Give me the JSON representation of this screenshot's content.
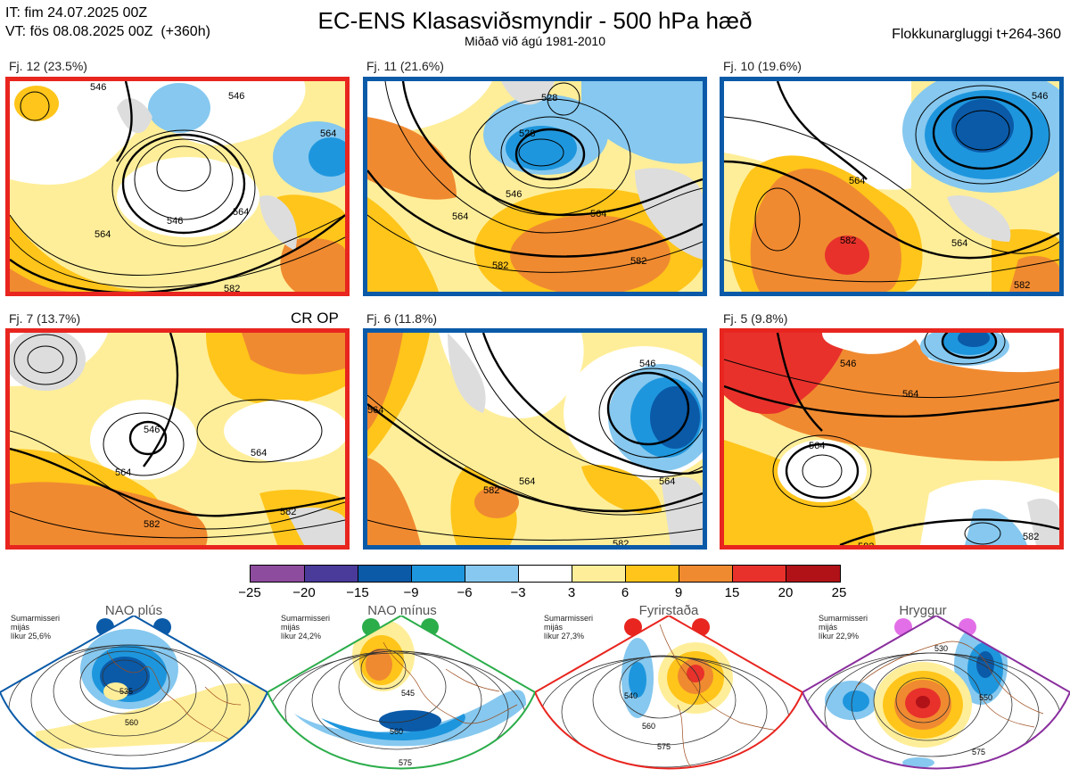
{
  "header": {
    "line1": "IT: fim 24.07.2025 00Z",
    "line2": "VT: fös 08.08.2025 00Z  (+360h)",
    "title": "EC-ENS Klasasviðsmyndir - 500 hPa hæð",
    "subtitle": "Miðað við ágú 1981-2010",
    "window": "Flokkunargluggi t+264-360"
  },
  "clusters": [
    {
      "label": "Fj. 12 (23.5%)",
      "border": "#e8251f",
      "contours": [
        "546",
        "564",
        "546",
        "564",
        "546",
        "564",
        "582"
      ]
    },
    {
      "label": "Fj. 11 (21.6%)",
      "border": "#0a5aa8",
      "contours": [
        "528",
        "528",
        "546",
        "564",
        "564",
        "582",
        "582"
      ]
    },
    {
      "label": "Fj. 10 (19.6%)",
      "border": "#0a5aa8",
      "contours": [
        "546",
        "564",
        "582",
        "564",
        "582"
      ]
    },
    {
      "label": "Fj. 7 (13.7%)",
      "border": "#e8251f",
      "tag": "CR OP",
      "contours": [
        "546",
        "564",
        "564",
        "582",
        "582"
      ]
    },
    {
      "label": "Fj. 6 (11.8%)",
      "border": "#0a5aa8",
      "contours": [
        "546",
        "564",
        "564",
        "582",
        "564",
        "582"
      ]
    },
    {
      "label": "Fj. 5 (9.8%)",
      "border": "#e8251f",
      "contours": [
        "546",
        "564",
        "564",
        "582",
        "582"
      ]
    }
  ],
  "colorbar": {
    "ticks": [
      "−25",
      "−20",
      "−15",
      "−9",
      "−6",
      "−3",
      "3",
      "6",
      "9",
      "15",
      "20",
      "25"
    ],
    "colors": [
      "#8e4c9e",
      "#4a3a9a",
      "#0a5aa8",
      "#1e96dd",
      "#86c8ef",
      "#ffffff",
      "#ffee99",
      "#ffc51a",
      "#f08a30",
      "#e8312b",
      "#b01218"
    ]
  },
  "regimes": [
    {
      "title": "NAO plús",
      "info_line1": "Sumarmisseri",
      "info_line2": "mijás",
      "info_line3": "líkur 25,6%",
      "color": "#0a5aa8",
      "contours": [
        "535",
        "560"
      ]
    },
    {
      "title": "NAO mínus",
      "info_line1": "Sumarmisseri",
      "info_line2": "mijás",
      "info_line3": "líkur 24,2%",
      "color": "#2bad4a",
      "contours": [
        "545",
        "560",
        "575"
      ]
    },
    {
      "title": "Fyrirstaða",
      "info_line1": "Sumarmisseri",
      "info_line2": "mijás",
      "info_line3": "líkur 27,3%",
      "color": "#e8251f",
      "contours": [
        "540",
        "560",
        "575"
      ]
    },
    {
      "title": "Hryggur",
      "info_line1": "Sumarmisseri",
      "info_line2": "mijás",
      "info_line3": "líkur 22,9%",
      "color": "#e36fe8",
      "contours": [
        "530",
        "550",
        "575"
      ]
    }
  ]
}
